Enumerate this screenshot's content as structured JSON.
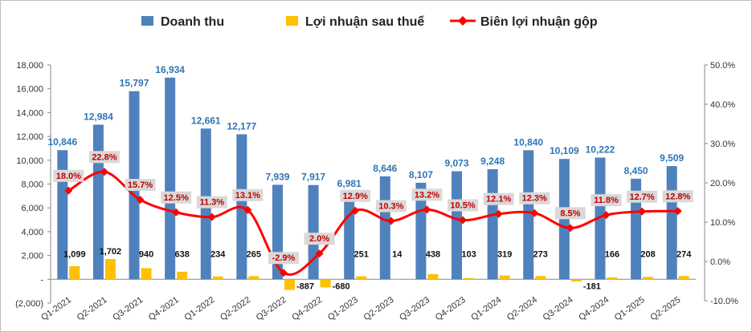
{
  "chart_data": {
    "type": "bar",
    "title": "",
    "categories": [
      "Q1-2021",
      "Q2-2021",
      "Q3-2021",
      "Q4-2021",
      "Q1-2022",
      "Q2-2022",
      "Q3-2022",
      "Q4-2022",
      "Q1-2023",
      "Q2-2023",
      "Q3-2023",
      "Q4-2023",
      "Q1-2024",
      "Q2-2024",
      "Q3-2024",
      "Q4-2024",
      "Q1-2025",
      "Q2-2025"
    ],
    "series": [
      {
        "name": "Doanh thu",
        "type": "bar",
        "axis": "left",
        "color": "#4f81bd",
        "values": [
          10846,
          12984,
          15797,
          16934,
          12661,
          12177,
          7939,
          7917,
          6981,
          8646,
          8107,
          9073,
          9248,
          10840,
          10109,
          10222,
          8450,
          9509
        ],
        "labels": [
          "10,846",
          "12,984",
          "15,797",
          "16,934",
          "12,661",
          "12,177",
          "7,939",
          "7,917",
          "6,981",
          "8,646",
          "8,107",
          "9,073",
          "9,248",
          "10,840",
          "10,109",
          "10,222",
          "8,450",
          "9,509"
        ]
      },
      {
        "name": "Lợi nhuận sau thuế",
        "type": "bar",
        "axis": "left",
        "color": "#ffc000",
        "values": [
          1099,
          1702,
          940,
          638,
          234,
          265,
          -887,
          -680,
          251,
          14,
          438,
          103,
          319,
          273,
          -181,
          166,
          208,
          274
        ],
        "labels": [
          "1,099",
          "1,702",
          "940",
          "638",
          "234",
          "265",
          "-887",
          "-680",
          "251",
          "14",
          "438",
          "103",
          "319",
          "273",
          "-181",
          "166",
          "208",
          "274"
        ]
      },
      {
        "name": "Biên lợi nhuận gộp",
        "type": "line",
        "axis": "right",
        "color": "#ff0000",
        "values": [
          18.0,
          22.8,
          15.7,
          12.5,
          11.3,
          13.1,
          -2.9,
          2.0,
          12.9,
          10.3,
          13.2,
          10.5,
          12.1,
          12.3,
          8.5,
          11.8,
          12.7,
          12.8
        ],
        "labels": [
          "18.0%",
          "22.8%",
          "15.7%",
          "12.5%",
          "11.3%",
          "13.1%",
          "-2.9%",
          "2.0%",
          "12.9%",
          "10.3%",
          "13.2%",
          "10.5%",
          "12.1%",
          "12.3%",
          "8.5%",
          "11.8%",
          "12.7%",
          "12.8%"
        ]
      }
    ],
    "left_axis": {
      "ylim": [
        -2000,
        18000
      ],
      "ticks": [
        -2000,
        0,
        2000,
        4000,
        6000,
        8000,
        10000,
        12000,
        14000,
        16000,
        18000
      ],
      "tick_labels": [
        "(2,000)",
        "-",
        "2,000",
        "4,000",
        "6,000",
        "8,000",
        "10,000",
        "12,000",
        "14,000",
        "16,000",
        "18,000"
      ]
    },
    "right_axis": {
      "ylim": [
        -10,
        50
      ],
      "ticks": [
        -10,
        0,
        10,
        20,
        30,
        40,
        50
      ],
      "tick_labels": [
        "-10.0%",
        "0.0%",
        "10.0%",
        "20.0%",
        "30.0%",
        "40.0%",
        "50.0%"
      ]
    },
    "legend_placement": "top-center",
    "grid": false
  }
}
